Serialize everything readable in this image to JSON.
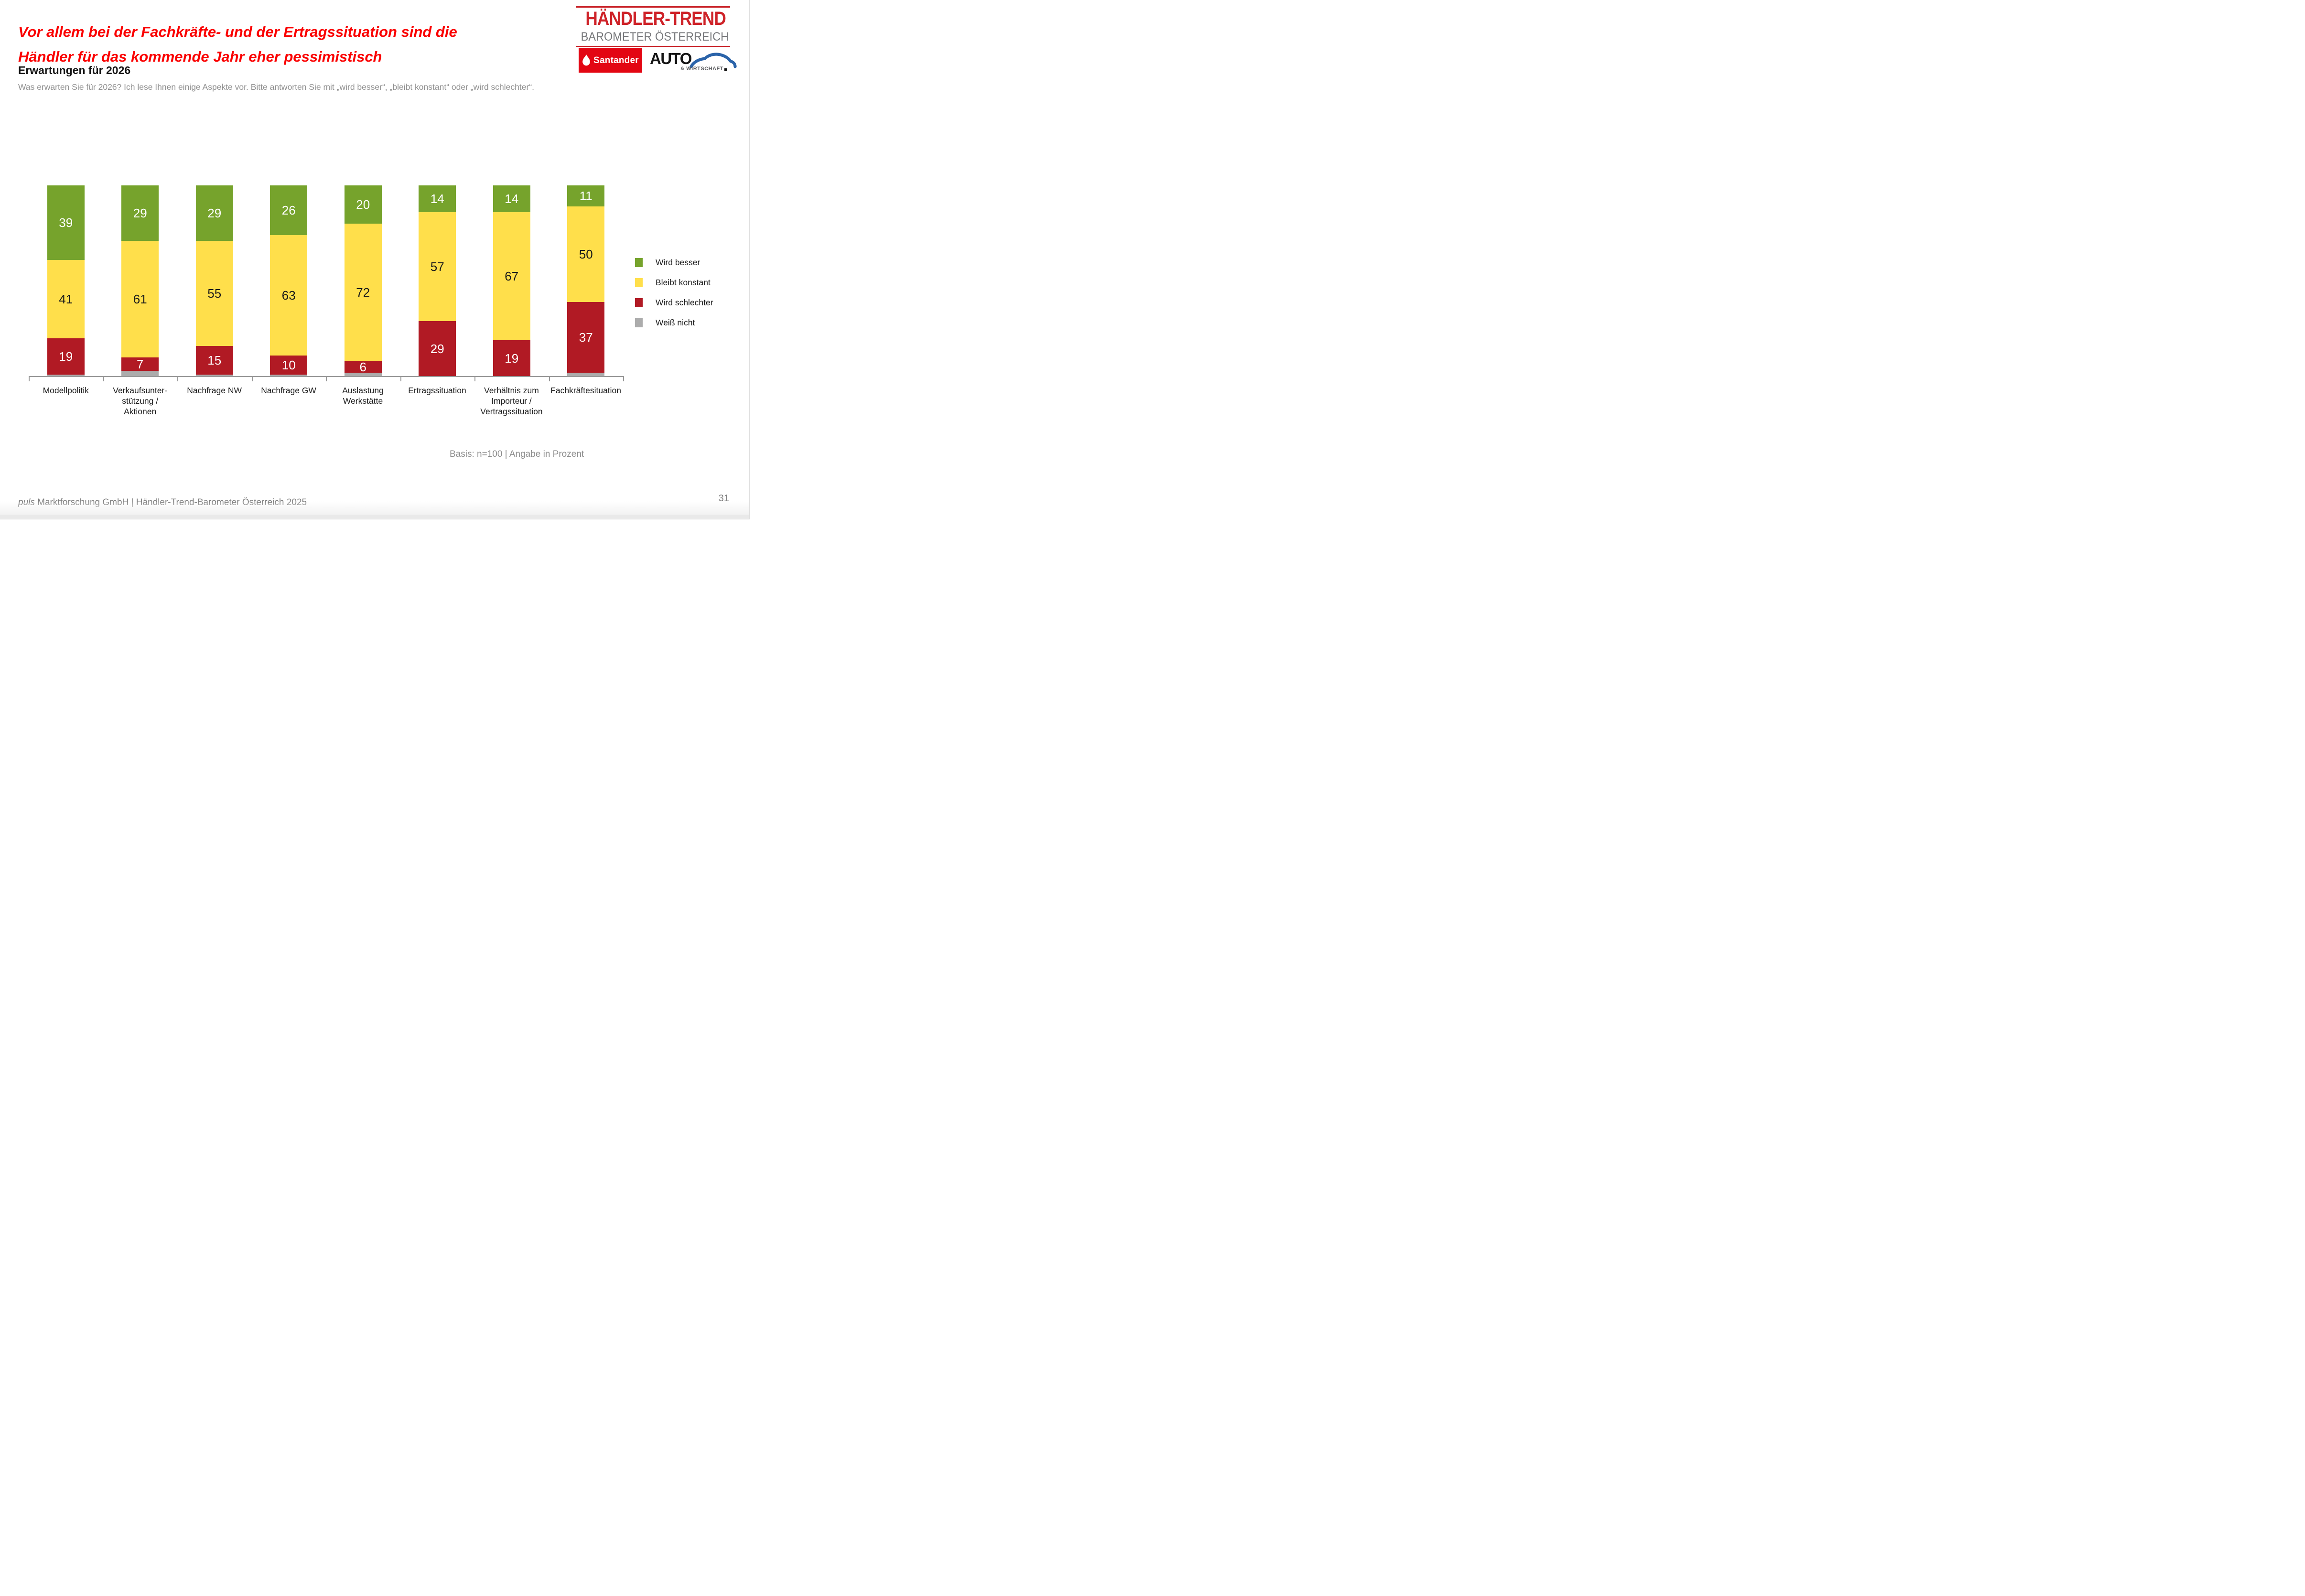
{
  "header": {
    "title_lines": [
      "Vor allem bei der Fachkräfte- und der Ertragssituation sind die",
      "Händler für das kommende Jahr eher pessimistisch"
    ],
    "title_color": "#fa0000",
    "subtitle": "Erwartungen für 2026",
    "description": "Was erwarten Sie für 2026? Ich lese Ihnen einige Aspekte vor. Bitte antworten Sie mit „wird besser“, „bleibt konstant“ oder „wird schlechter“."
  },
  "logo": {
    "line1": "HÄNDLER-TREND",
    "line2": "BAROMETER ÖSTERREICH",
    "santander_text": "Santander",
    "auto_text": "AUTO",
    "wirtschaft_text": "& WIRTSCHAFT",
    "wordmark_red": "#ce2228",
    "santander_red": "#e30613",
    "auto_blue": "#2a63a9"
  },
  "chart_data": {
    "type": "bar",
    "stacked": true,
    "percent": true,
    "ylim": [
      0,
      100
    ],
    "legend_position": "right",
    "grid": false,
    "categories": [
      "Modellpolitik",
      "Verkaufsunterstützung / Aktionen",
      "Nachfrage NW",
      "Nachfrage GW",
      "Auslastung Werkstätte",
      "Ertragssituation",
      "Verhältnis zum Importeur / Vertragssituation",
      "Fachkräftesituation"
    ],
    "category_label_lines": [
      [
        "Modellpolitik"
      ],
      [
        "Verkaufsunter-",
        "stützung /",
        "Aktionen"
      ],
      [
        "Nachfrage NW"
      ],
      [
        "Nachfrage GW"
      ],
      [
        "Auslastung",
        "Werkstätte"
      ],
      [
        "Ertragssituation"
      ],
      [
        "Verhältnis zum",
        "Importeur /",
        "Vertragssituation"
      ],
      [
        "Fachkräftesituation"
      ]
    ],
    "series": [
      {
        "name": "Wird besser",
        "color": "#76a32c",
        "label_color": "#ffffff",
        "show_labels": true,
        "values": [
          39,
          29,
          29,
          26,
          20,
          14,
          14,
          11
        ]
      },
      {
        "name": "Bleibt konstant",
        "color": "#ffdf4b",
        "label_color": "#1a1a1a",
        "show_labels": true,
        "values": [
          41,
          61,
          55,
          63,
          72,
          57,
          67,
          50
        ]
      },
      {
        "name": "Wird schlechter",
        "color": "#b11a24",
        "label_color": "#ffffff",
        "show_labels": true,
        "values": [
          19,
          7,
          15,
          10,
          6,
          29,
          19,
          37
        ]
      },
      {
        "name": "Weiß nicht",
        "color": "#acacac",
        "label_color": "#ffffff",
        "show_labels": false,
        "values": [
          1,
          3,
          1,
          1,
          2,
          0,
          0,
          2
        ]
      }
    ],
    "axis_color": "#989898",
    "note": "Basis: n=100 | Angabe in Prozent"
  },
  "footer": {
    "prefix_italic": "puls",
    "rest": " Marktforschung GmbH | Händler-Trend-Barometer Österreich 2025",
    "page_number": "31"
  }
}
